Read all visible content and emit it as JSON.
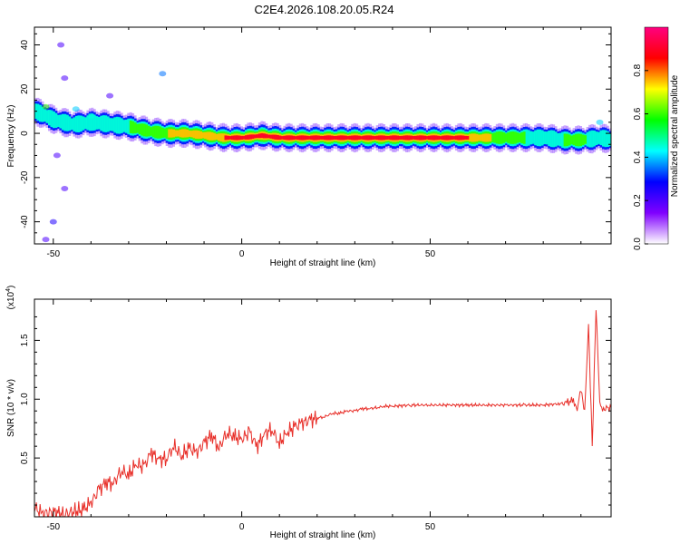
{
  "title": "C2E4.2026.108.20.05.R24",
  "chart_data": [
    {
      "type": "heatmap",
      "xlabel": "Height of straight line (km)",
      "ylabel": "Frequency (Hz)",
      "xlim": [
        -55,
        98
      ],
      "ylim": [
        -50,
        48
      ],
      "xticks": [
        -50,
        0,
        50
      ],
      "yticks": [
        -40,
        -20,
        0,
        20,
        40
      ],
      "colorbar": {
        "label": "Normalized spectral amplitude",
        "range": [
          0.0,
          1.0
        ],
        "ticks": [
          "0.0",
          "0.2",
          "0.4",
          "0.6",
          "0.8"
        ],
        "tick_values": [
          0.0,
          0.2,
          0.4,
          0.6,
          0.8
        ],
        "colors": [
          "#ffffff",
          "#8000ff",
          "#0000ff",
          "#00ffff",
          "#00ff00",
          "#ffff00",
          "#ff0000",
          "#ff0080"
        ]
      },
      "ridge": {
        "x": [
          -55,
          -50,
          -45,
          -40,
          -35,
          -30,
          -25,
          -20,
          -15,
          -10,
          -5,
          0,
          5,
          10,
          20,
          30,
          40,
          50,
          60,
          70,
          80,
          85,
          90,
          95,
          98
        ],
        "y": [
          10,
          6,
          4,
          5,
          4,
          3,
          1,
          0,
          0,
          -1,
          -2,
          -2,
          -1,
          -2,
          -2,
          -2,
          -2,
          -2,
          -2,
          -2,
          -2,
          -3,
          -3,
          -2,
          -3
        ],
        "amplitude": [
          0.4,
          0.45,
          0.4,
          0.5,
          0.5,
          0.55,
          0.65,
          0.7,
          0.75,
          0.8,
          0.85,
          0.85,
          0.85,
          0.9,
          0.9,
          0.9,
          0.9,
          0.9,
          0.85,
          0.6,
          0.5,
          0.55,
          0.6,
          0.4,
          0.4
        ]
      },
      "scatter_clusters": [
        {
          "x": -48,
          "y": 40,
          "amplitude": 0.1
        },
        {
          "x": -47,
          "y": 25,
          "amplitude": 0.1
        },
        {
          "x": -52,
          "y": 12,
          "amplitude": 0.5
        },
        {
          "x": -44,
          "y": 11,
          "amplitude": 0.3
        },
        {
          "x": -35,
          "y": 17,
          "amplitude": 0.1
        },
        {
          "x": -21,
          "y": 27,
          "amplitude": 0.25
        },
        {
          "x": -49,
          "y": -10,
          "amplitude": 0.1
        },
        {
          "x": -47,
          "y": -25,
          "amplitude": 0.1
        },
        {
          "x": -50,
          "y": -40,
          "amplitude": 0.15
        },
        {
          "x": -52,
          "y": -48,
          "amplitude": 0.1
        },
        {
          "x": -40,
          "y": 8,
          "amplitude": 0.35
        },
        {
          "x": 95,
          "y": 5,
          "amplitude": 0.3
        }
      ]
    },
    {
      "type": "line",
      "xlabel": "Height of straight line (km)",
      "ylabel": "SNR (10 * v/v)",
      "yscale_label": "(x10",
      "yscale_exponent": "4",
      "xlim": [
        -55,
        98
      ],
      "ylim": [
        0,
        1.85
      ],
      "xticks": [
        -50,
        0,
        50
      ],
      "yticks": [
        0.5,
        1.0,
        1.5
      ],
      "ytick_labels": [
        "0.5",
        "1.0",
        "1.5"
      ],
      "series": [
        {
          "color": "#e8302a",
          "x": [
            -55,
            -53,
            -50,
            -47,
            -44,
            -42,
            -40,
            -38,
            -36,
            -34,
            -32,
            -30,
            -28,
            -26,
            -24,
            -22,
            -20,
            -18,
            -16,
            -14,
            -12,
            -10,
            -8,
            -6,
            -4,
            -2,
            0,
            2,
            4,
            6,
            8,
            10,
            12,
            14,
            16,
            18,
            20,
            22,
            24,
            26,
            28,
            30,
            32,
            34,
            36,
            38,
            40,
            45,
            50,
            55,
            60,
            65,
            70,
            75,
            80,
            84,
            86,
            88,
            89,
            90,
            91,
            92,
            93,
            94,
            95,
            96,
            98
          ],
          "y": [
            0.08,
            0.03,
            0.04,
            0.02,
            0.05,
            0.06,
            0.12,
            0.22,
            0.3,
            0.28,
            0.4,
            0.35,
            0.45,
            0.42,
            0.55,
            0.48,
            0.5,
            0.6,
            0.52,
            0.58,
            0.55,
            0.62,
            0.7,
            0.58,
            0.72,
            0.68,
            0.66,
            0.72,
            0.6,
            0.7,
            0.75,
            0.62,
            0.72,
            0.76,
            0.8,
            0.82,
            0.84,
            0.85,
            0.88,
            0.88,
            0.9,
            0.9,
            0.92,
            0.92,
            0.93,
            0.94,
            0.94,
            0.95,
            0.95,
            0.95,
            0.95,
            0.95,
            0.95,
            0.95,
            0.95,
            0.96,
            0.97,
            0.99,
            0.92,
            1.08,
            0.88,
            1.65,
            0.6,
            1.78,
            0.95,
            0.92,
            0.93
          ]
        }
      ]
    }
  ]
}
